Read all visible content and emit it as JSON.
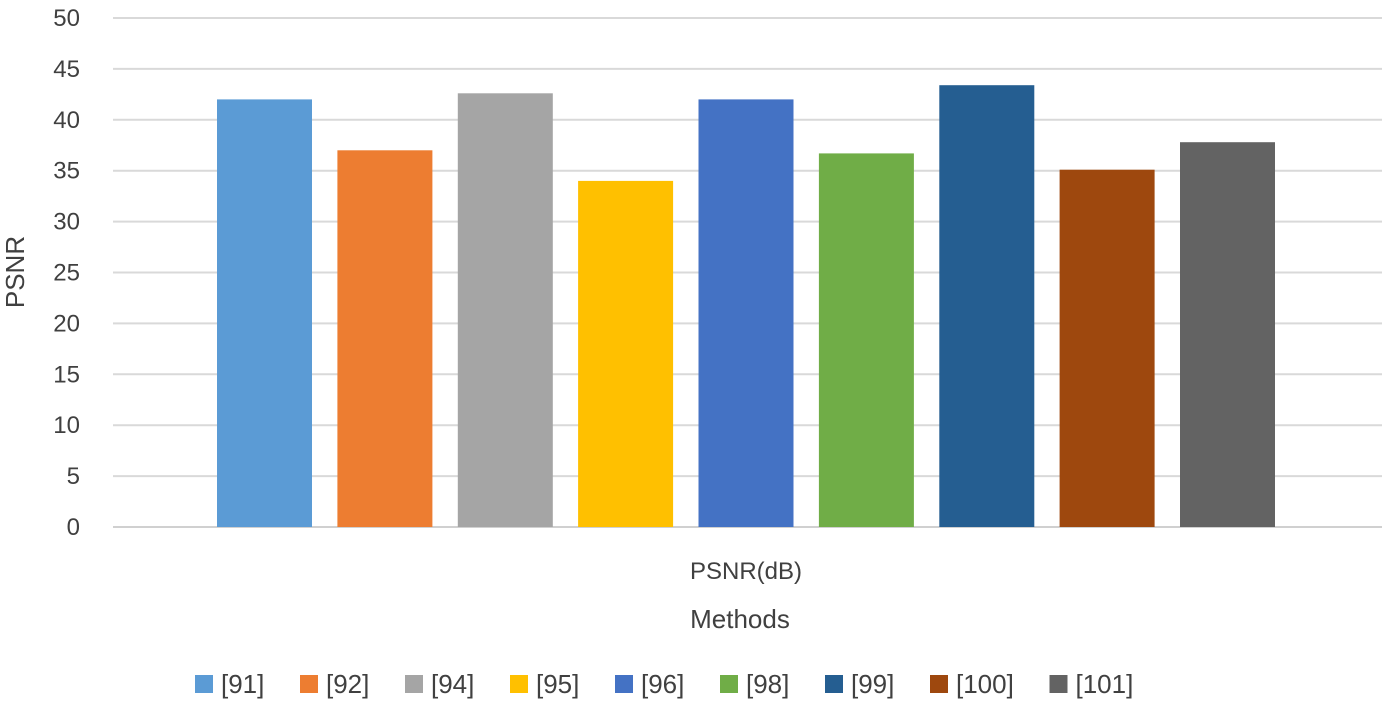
{
  "chart_data": {
    "type": "bar",
    "xlabel": "Methods",
    "ylabel": "PSNR",
    "categories": [
      "PSNR(dB)"
    ],
    "ylim": [
      0,
      50
    ],
    "yticks": [
      0,
      5,
      10,
      15,
      20,
      25,
      30,
      35,
      40,
      45,
      50
    ],
    "grid": true,
    "legend_position": "bottom",
    "series": [
      {
        "name": "[91]",
        "values": [
          42.0
        ],
        "color": "#5B9BD5"
      },
      {
        "name": "[92]",
        "values": [
          37.0
        ],
        "color": "#ED7D31"
      },
      {
        "name": "[94]",
        "values": [
          42.6
        ],
        "color": "#A5A5A5"
      },
      {
        "name": "[95]",
        "values": [
          34.0
        ],
        "color": "#FFC000"
      },
      {
        "name": "[96]",
        "values": [
          42.0
        ],
        "color": "#4472C4"
      },
      {
        "name": "[98]",
        "values": [
          36.7
        ],
        "color": "#70AD47"
      },
      {
        "name": "[99]",
        "values": [
          43.4
        ],
        "color": "#255E91"
      },
      {
        "name": "[100]",
        "values": [
          35.1
        ],
        "color": "#9E480E"
      },
      {
        "name": "[101]",
        "values": [
          37.8
        ],
        "color": "#636363"
      }
    ]
  }
}
